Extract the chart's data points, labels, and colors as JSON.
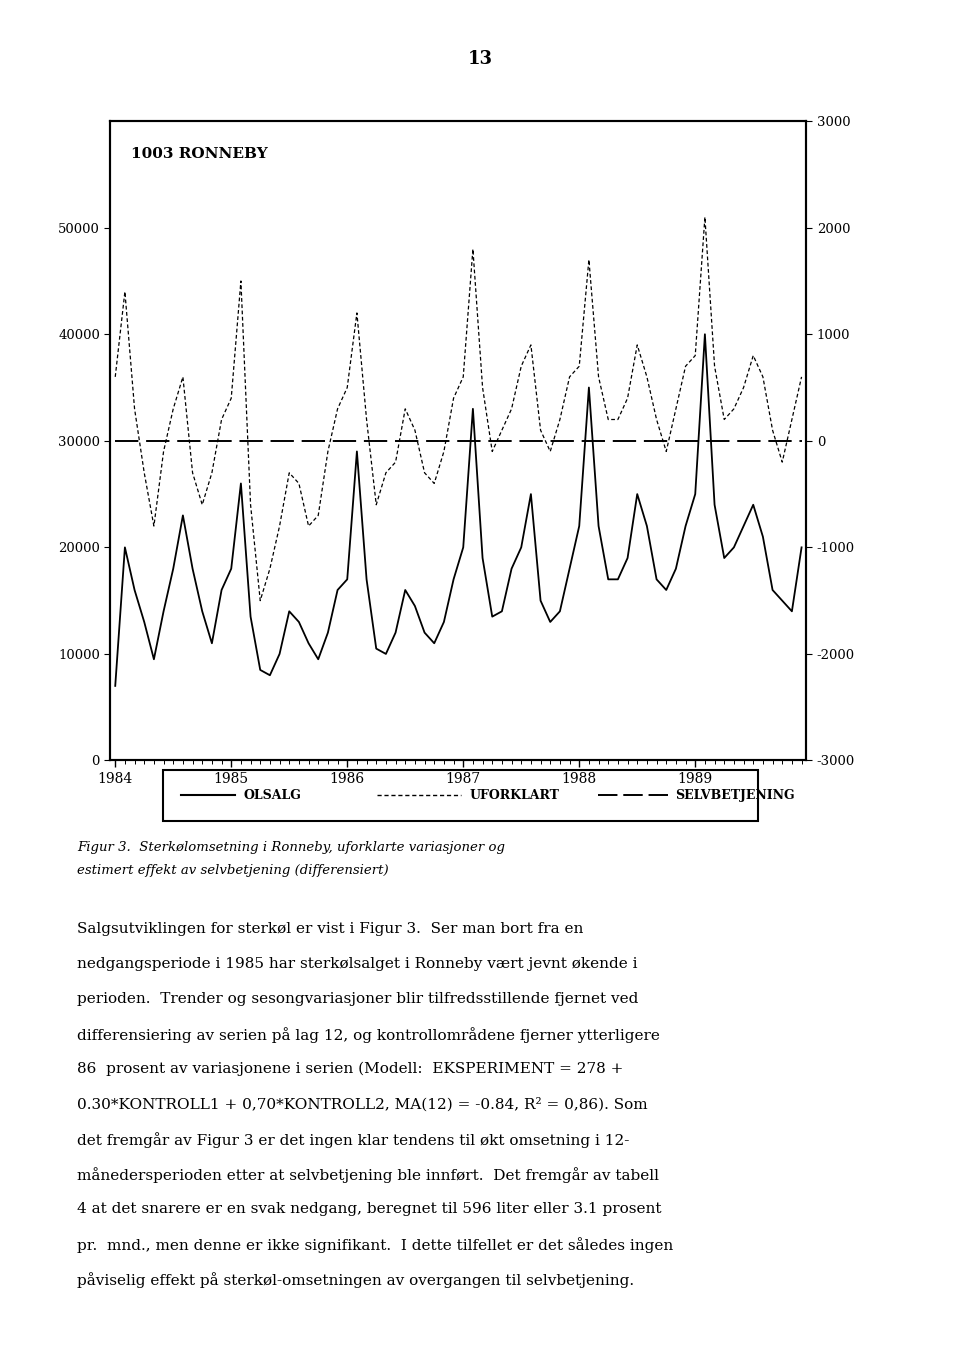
{
  "title_page": "13",
  "chart_label": "1003 RONNEBY",
  "left_ylim": [
    0,
    60000
  ],
  "right_ylim": [
    -3000,
    3000
  ],
  "left_yticks": [
    0,
    10000,
    20000,
    30000,
    40000,
    50000
  ],
  "right_yticks": [
    -3000,
    -2000,
    -1000,
    0,
    1000,
    2000,
    3000
  ],
  "xtick_labels": [
    "1984",
    "1985",
    "1986",
    "1987",
    "1988",
    "1989"
  ],
  "legend_labels": [
    "OLSALG",
    "UFORKLART",
    "SELVBETJENING"
  ],
  "caption_line1": "Figur 3.  Sterkølomsetning i Ronneby, uforklarte variasjoner og",
  "caption_line2": "estimert effekt av selvbetjening (differensiert)",
  "background_color": "#ffffff",
  "olsalg": [
    7000,
    20000,
    16000,
    13000,
    9500,
    14000,
    18000,
    23000,
    18000,
    14000,
    11000,
    16000,
    18000,
    26000,
    13500,
    8500,
    8000,
    10000,
    14000,
    13000,
    11000,
    9500,
    12000,
    16000,
    17000,
    29000,
    17000,
    10500,
    10000,
    12000,
    16000,
    14500,
    12000,
    11000,
    13000,
    17000,
    20000,
    33000,
    19000,
    13500,
    14000,
    18000,
    20000,
    25000,
    15000,
    13000,
    14000,
    18000,
    22000,
    35000,
    22000,
    17000,
    17000,
    19000,
    25000,
    22000,
    17000,
    16000,
    18000,
    22000,
    25000,
    40000,
    24000,
    19000,
    20000,
    22000,
    24000,
    21000,
    16000,
    15000,
    14000,
    20000
  ],
  "uforklart": [
    600,
    1400,
    300,
    -300,
    -800,
    -100,
    300,
    600,
    -300,
    -600,
    -300,
    200,
    400,
    1500,
    -600,
    -1500,
    -1200,
    -800,
    -300,
    -400,
    -800,
    -700,
    -100,
    300,
    500,
    1200,
    200,
    -600,
    -300,
    -200,
    300,
    100,
    -300,
    -400,
    -100,
    400,
    600,
    1800,
    500,
    -100,
    100,
    300,
    700,
    900,
    100,
    -100,
    200,
    600,
    700,
    1700,
    600,
    200,
    200,
    400,
    900,
    600,
    200,
    -100,
    300,
    700,
    800,
    2100,
    700,
    200,
    300,
    500,
    800,
    600,
    100,
    -200,
    200,
    600
  ],
  "selvbetjening": [
    0,
    0,
    0,
    0,
    0,
    0,
    0,
    0,
    0,
    0,
    0,
    0,
    0,
    0,
    0,
    0,
    0,
    0,
    0,
    0,
    0,
    0,
    0,
    0,
    0,
    0,
    0,
    0,
    0,
    0,
    0,
    0,
    0,
    0,
    0,
    0,
    0,
    0,
    0,
    0,
    0,
    0,
    0,
    0,
    0,
    0,
    0,
    0,
    0,
    0,
    0,
    0,
    0,
    0,
    0,
    0,
    0,
    0,
    0,
    0,
    0,
    0,
    0,
    0,
    0,
    0,
    0,
    0,
    0,
    0,
    0,
    0
  ],
  "body_text_lines": [
    "Salgsutviklingen for sterkøl er vist i Figur 3.  Ser man bort fra en",
    "nedgangsperiode i 1985 har sterkølsalget i Ronneby vært jevnt økende i",
    "perioden.  Trender og sesongvariasjoner blir tilfredsstillende fjernet ved",
    "differensiering av serien på lag 12, og kontrollområdene fjerner ytterligere",
    "86  prosent av variasjonene i serien (Modell:  EKSPERIMENT = 278 +",
    "0.30*KONTROLL1 + 0,70*KONTROLL2, MA(12) = -0.84, R² = 0,86). Som",
    "det fremgår av Figur 3 er det ingen klar tendens til økt omsetning i 12-",
    "månedersperioden etter at selvbetjening ble innført.  Det fremgår av tabell",
    "4 at det snarere er en svak nedgang, beregnet til 596 liter eller 3.1 prosent",
    "pr.  mnd., men denne er ikke signifikant.  I dette tilfellet er det således ingen",
    "påviselig effekt på sterkøl-omsetningen av overgangen til selvbetjening."
  ]
}
